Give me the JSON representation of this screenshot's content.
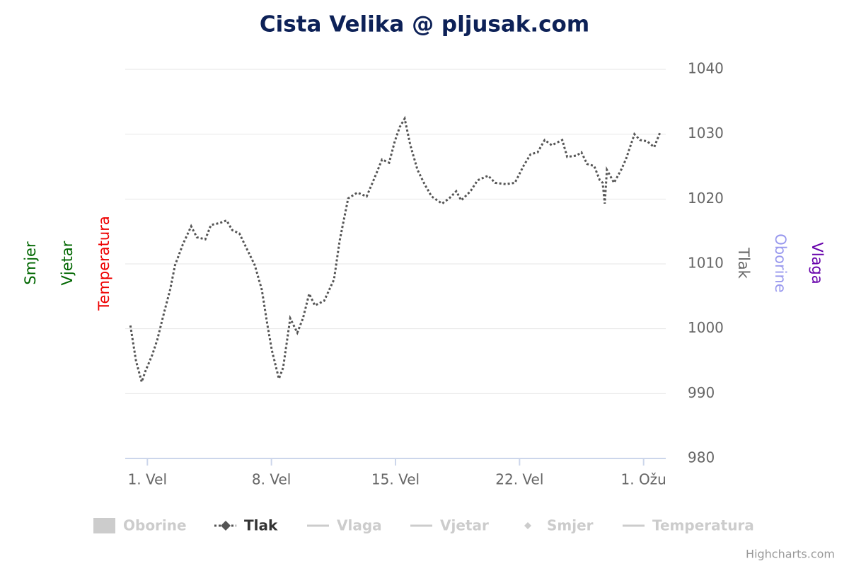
{
  "chart_data": {
    "type": "line",
    "title": "Cista Velika @ pljusak.com",
    "title_color": "#0d2157",
    "x": [
      0.04,
      0.36,
      0.68,
      0.88,
      1.28,
      1.56,
      1.96,
      2.28,
      2.56,
      3.0,
      3.47,
      3.79,
      4.27,
      4.59,
      5.07,
      5.47,
      5.79,
      6.19,
      6.58,
      7.06,
      7.46,
      7.78,
      8.02,
      8.42,
      8.66,
      9.06,
      9.46,
      9.78,
      10.13,
      10.45,
      10.97,
      11.53,
      11.85,
      12.33,
      12.85,
      13.37,
      13.84,
      14.24,
      14.64,
      14.96,
      15.24,
      15.52,
      15.84,
      16.24,
      16.64,
      17.04,
      17.63,
      18.03,
      18.43,
      18.71,
      19.23,
      19.63,
      20.23,
      20.62,
      21.22,
      21.74,
      22.22,
      22.62,
      23.02,
      23.42,
      23.82,
      24.41,
      24.69,
      25.21,
      25.49,
      25.81,
      26.21,
      26.53,
      26.69,
      26.81,
      26.93,
      27.33,
      27.73,
      28.0,
      28.48,
      28.8,
      29.2,
      29.6,
      29.92
    ],
    "xlim": [
      -0.25,
      30.25
    ],
    "xticks": [
      {
        "value": 1,
        "label": "1. Vel"
      },
      {
        "value": 8,
        "label": "8. Vel"
      },
      {
        "value": 15,
        "label": "15. Vel"
      },
      {
        "value": 22,
        "label": "22. Vel"
      },
      {
        "value": 29,
        "label": "1. Ožu"
      }
    ],
    "ylim": [
      980,
      1040
    ],
    "yticks": [
      980,
      990,
      1000,
      1010,
      1020,
      1030,
      1040
    ],
    "grid": true,
    "series": [
      {
        "name": "Oborine",
        "color": "#9999ee",
        "visible": false,
        "symbol": "area"
      },
      {
        "name": "Tlak",
        "color": "#555555",
        "visible": true,
        "symbol": "dotted-diamond",
        "values": [
          1000.5,
          995,
          991.8,
          993.4,
          996,
          998.3,
          1002.7,
          1006,
          1009.8,
          1013,
          1015.8,
          1014.1,
          1013.8,
          1016,
          1016.3,
          1016.7,
          1015.2,
          1014.7,
          1012.5,
          1009.8,
          1006,
          1000.5,
          996.7,
          992.3,
          994,
          1001.6,
          999.4,
          1001.6,
          1005.4,
          1003.6,
          1004.3,
          1007.6,
          1013.6,
          1020.1,
          1021,
          1020.4,
          1023.4,
          1026.1,
          1025.6,
          1028.9,
          1031.1,
          1032.4,
          1028.3,
          1024.5,
          1022.3,
          1020.4,
          1019.3,
          1020.1,
          1021.2,
          1019.8,
          1021.2,
          1022.9,
          1023.6,
          1022.5,
          1022.3,
          1022.5,
          1025.1,
          1026.9,
          1027.2,
          1029.1,
          1028.3,
          1029.1,
          1026.5,
          1026.7,
          1027.2,
          1025.4,
          1025.1,
          1022.9,
          1022.5,
          1019.3,
          1024.5,
          1022.5,
          1024.5,
          1026.1,
          1030,
          1029.1,
          1028.9,
          1028,
          1030.2
        ]
      },
      {
        "name": "Vlaga",
        "color": "#6600aa",
        "visible": false,
        "symbol": "line"
      },
      {
        "name": "Vjetar",
        "color": "#006600",
        "visible": false,
        "symbol": "line"
      },
      {
        "name": "Smjer",
        "color": "#006600",
        "visible": false,
        "symbol": "diamond"
      },
      {
        "name": "Temperatura",
        "color": "#ee0000",
        "visible": false,
        "symbol": "line"
      }
    ],
    "left_axis_titles": [
      {
        "text": "Smjer",
        "color": "#006600"
      },
      {
        "text": "Vjetar",
        "color": "#006600"
      },
      {
        "text": "Temperatura",
        "color": "#ee0000"
      }
    ],
    "right_axis_titles": [
      {
        "text": "Tlak",
        "color": "#666666"
      },
      {
        "text": "Oborine",
        "color": "#9999ee"
      },
      {
        "text": "Vlaga",
        "color": "#6600aa"
      }
    ],
    "credits": "Highcharts.com"
  }
}
